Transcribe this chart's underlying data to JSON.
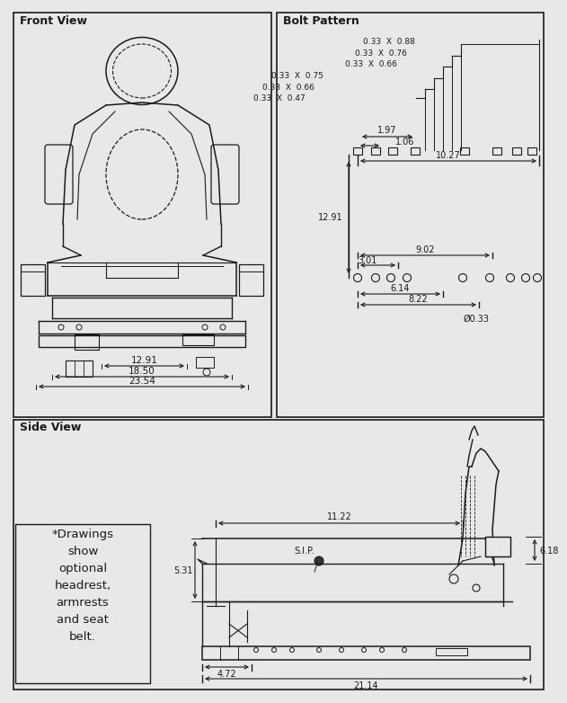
{
  "bg_color": "#e8e8e8",
  "line_color": "#1a1a1a",
  "text_color": "#1a1a1a",
  "title_front": "Front View",
  "title_bolt": "Bolt Pattern",
  "title_side": "Side View",
  "note_text": "*Drawings\nshow\noptional\nheadrest,\narmrests\nand seat\nbelt.",
  "front_dims": [
    "12.91",
    "18.50",
    "23.54"
  ],
  "bolt_labels": [
    "0.33  X  0.88",
    "0.33  X  0.76",
    "0.33  X  0.66",
    "0.33  X  0.75",
    "0.33  X  0.66",
    "0.33  X  0.47"
  ],
  "bolt_dims_h": [
    "1.97",
    "1.06",
    "10.27"
  ],
  "bolt_dim_v": "12.91",
  "bolt_row2": [
    "9.02",
    "3.01",
    "6.14",
    "8.22",
    "0.33"
  ],
  "side_dims": [
    "6.18",
    "11.22",
    "5.31",
    "4.72",
    "21.14"
  ],
  "sip_label": "S.I.P."
}
